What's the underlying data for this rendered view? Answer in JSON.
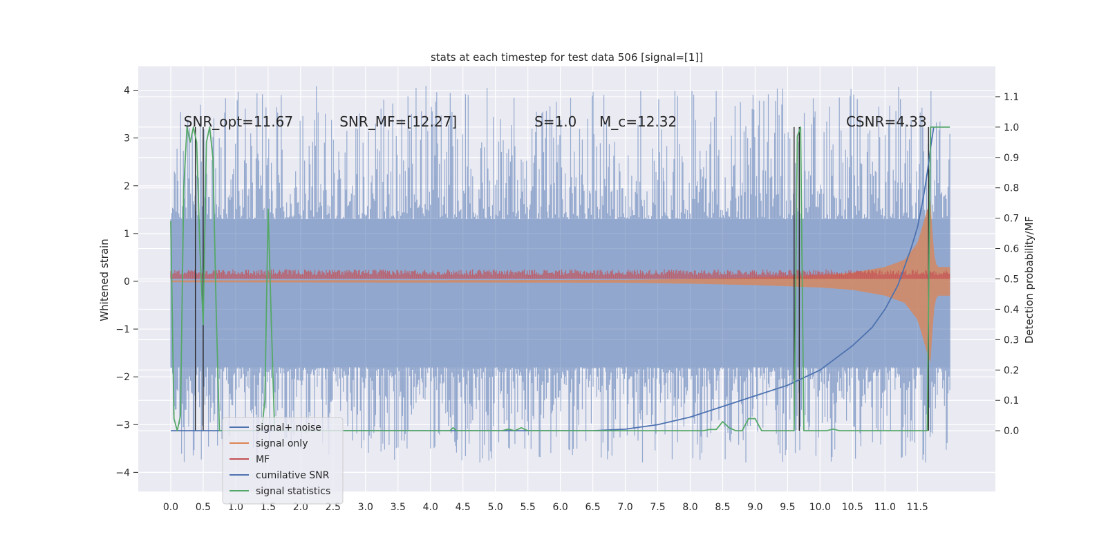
{
  "chart_data": {
    "type": "line",
    "title": "stats at each timestep for test data 506 [signal=[1]]",
    "xlabel": "",
    "ylabel": "Whitened strain",
    "y2label": "Detection probability/MF",
    "xlim": [
      -0.5,
      12.7
    ],
    "ylim": [
      -4.4,
      4.5
    ],
    "y2lim": [
      -0.2,
      1.2
    ],
    "xticks": [
      "0.0",
      "0.5",
      "1.0",
      "1.5",
      "2.0",
      "2.5",
      "3.0",
      "3.5",
      "4.0",
      "4.5",
      "5.0",
      "5.5",
      "6.0",
      "6.5",
      "7.0",
      "7.5",
      "8.0",
      "8.5",
      "9.0",
      "9.5",
      "10.0",
      "10.5",
      "11.0",
      "11.5"
    ],
    "yticks": [
      "−4",
      "−3",
      "−2",
      "−1",
      "0",
      "1",
      "2",
      "3",
      "4"
    ],
    "y2ticks": [
      "0.0",
      "0.1",
      "0.2",
      "0.3",
      "0.4",
      "0.5",
      "0.6",
      "0.7",
      "0.8",
      "0.9",
      "1.0",
      "1.1"
    ],
    "grid": true,
    "legend_position": "lower-left",
    "annotations": [
      {
        "text": "SNR_opt=11.67",
        "x": 0.2,
        "y": 3.3
      },
      {
        "text": "SNR_MF=[12.27]",
        "x": 2.6,
        "y": 3.3
      },
      {
        "text": "S=1.0",
        "x": 5.6,
        "y": 3.3
      },
      {
        "text": "M_c=12.32",
        "x": 6.6,
        "y": 3.3
      },
      {
        "text": "CSNR=4.33",
        "x": 10.4,
        "y": 3.3
      }
    ],
    "series": [
      {
        "name": "signal+ noise",
        "color": "#4c72b0",
        "axis": "left",
        "style": "noise-band",
        "x_range": [
          0.0,
          12.0
        ],
        "envelope": [
          1.3,
          -1.8
        ],
        "spike_max": 4.1,
        "spike_min": -3.8
      },
      {
        "name": "signal only",
        "color": "#dd8452",
        "axis": "left",
        "style": "chirp",
        "x": [
          0.0,
          7.0,
          8.0,
          9.0,
          10.0,
          10.5,
          11.0,
          11.3,
          11.5,
          11.65,
          11.7,
          11.75,
          11.8,
          12.0
        ],
        "amplitude": [
          0.02,
          0.03,
          0.05,
          0.08,
          0.13,
          0.18,
          0.3,
          0.45,
          0.8,
          1.5,
          1.7,
          0.6,
          0.3,
          0.3
        ]
      },
      {
        "name": "MF",
        "color": "#c44e52",
        "axis": "left",
        "style": "band",
        "x_range": [
          0.0,
          12.0
        ],
        "low": 0.05,
        "high": 0.25
      },
      {
        "name": "cumilative SNR",
        "color": "#4c72b0",
        "axis": "right",
        "x": [
          0.0,
          6.5,
          7.0,
          7.5,
          8.0,
          8.5,
          9.0,
          9.5,
          10.0,
          10.5,
          10.8,
          11.0,
          11.2,
          11.4,
          11.5,
          11.6,
          11.65,
          11.7,
          11.75
        ],
        "y": [
          0.0,
          0.0,
          0.005,
          0.02,
          0.045,
          0.08,
          0.115,
          0.15,
          0.2,
          0.28,
          0.34,
          0.4,
          0.48,
          0.6,
          0.67,
          0.78,
          0.85,
          0.93,
          1.0
        ]
      },
      {
        "name": "signal statistics",
        "color": "#55a868",
        "axis": "right",
        "x": [
          0.0,
          0.05,
          0.1,
          0.15,
          0.2,
          0.25,
          0.3,
          0.35,
          0.4,
          0.45,
          0.5,
          0.55,
          0.6,
          0.65,
          0.7,
          0.75,
          0.8,
          1.3,
          1.4,
          1.45,
          1.5,
          1.55,
          1.6,
          1.65,
          4.3,
          4.35,
          4.4,
          4.45,
          5.1,
          5.2,
          5.3,
          5.4,
          5.5,
          5.6,
          8.2,
          8.3,
          8.4,
          8.5,
          8.6,
          8.7,
          8.8,
          8.9,
          9.0,
          9.1,
          9.2,
          9.6,
          9.65,
          9.7,
          9.75,
          10.1,
          10.2,
          10.3,
          11.65,
          11.7,
          11.75,
          11.8,
          12.0
        ],
        "y": [
          0.69,
          0.04,
          0.0,
          0.05,
          0.8,
          1.0,
          0.95,
          1.0,
          0.95,
          0.6,
          0.35,
          0.95,
          1.0,
          0.9,
          0.4,
          0.0,
          0.0,
          0.0,
          0.0,
          0.1,
          0.73,
          0.35,
          0.0,
          0.0,
          0.0,
          0.01,
          0.0,
          0.0,
          0.0,
          0.005,
          0.0,
          0.01,
          0.0,
          0.0,
          0.0,
          0.004,
          0.004,
          0.03,
          0.01,
          0.0,
          0.0,
          0.04,
          0.04,
          0.0,
          0.0,
          0.0,
          0.97,
          1.0,
          0.0,
          0.0,
          0.005,
          0.0,
          0.0,
          1.0,
          1.0,
          1.0,
          1.0
        ]
      },
      {
        "name": "",
        "color": "#262626",
        "axis": "right",
        "style": "vlines",
        "x": [
          0.38,
          0.5,
          9.6,
          9.68,
          11.67
        ]
      }
    ]
  }
}
